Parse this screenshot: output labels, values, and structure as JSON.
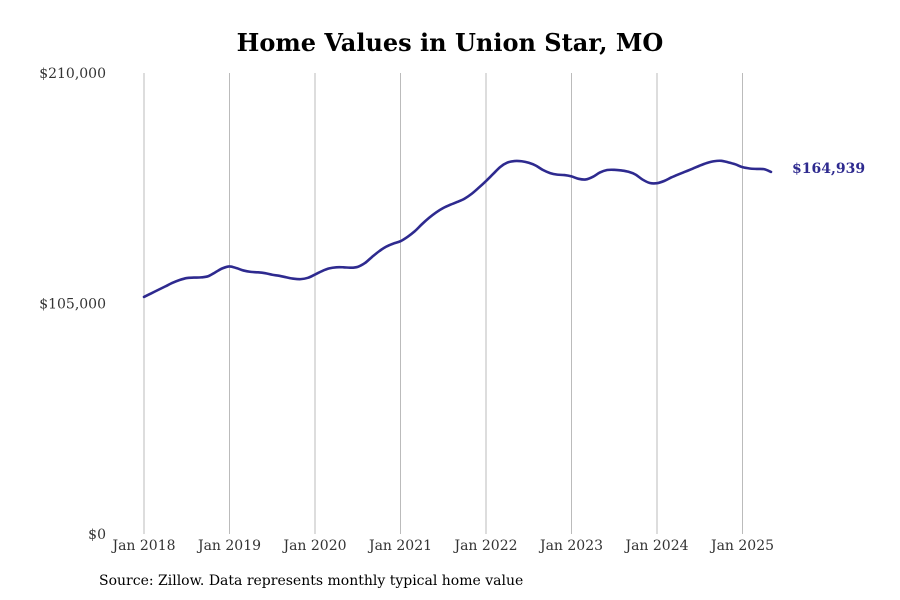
{
  "chart_data": {
    "type": "line",
    "title": "Home Values in Union Star, MO",
    "xlabel": "",
    "ylabel": "",
    "source": "Source: Zillow. Data represents monthly typical home value",
    "y_ticks": [
      {
        "value": 0,
        "label": "$0"
      },
      {
        "value": 105000,
        "label": "$105,000"
      },
      {
        "value": 210000,
        "label": "$210,000"
      }
    ],
    "x_ticks": [
      {
        "value": "2018-01",
        "label": "Jan 2018"
      },
      {
        "value": "2019-01",
        "label": "Jan 2019"
      },
      {
        "value": "2020-01",
        "label": "Jan 2020"
      },
      {
        "value": "2021-01",
        "label": "Jan 2021"
      },
      {
        "value": "2022-01",
        "label": "Jan 2022"
      },
      {
        "value": "2023-01",
        "label": "Jan 2023"
      },
      {
        "value": "2024-01",
        "label": "Jan 2024"
      },
      {
        "value": "2025-01",
        "label": "Jan 2025"
      }
    ],
    "ylim": [
      0,
      210000
    ],
    "xlim": [
      "2018-01",
      "2025-05"
    ],
    "grid": {
      "vertical": true,
      "horizontal": false
    },
    "line_color": "#2e2a8f",
    "grid_color": "#bbbbbb",
    "end_label": "$164,939",
    "series": [
      {
        "x": [
          "2018-01",
          "2018-02",
          "2018-03",
          "2018-04",
          "2018-05",
          "2018-06",
          "2018-07",
          "2018-08",
          "2018-09",
          "2018-10",
          "2018-11",
          "2018-12",
          "2019-01",
          "2019-02",
          "2019-03",
          "2019-04",
          "2019-05",
          "2019-06",
          "2019-07",
          "2019-08",
          "2019-09",
          "2019-10",
          "2019-11",
          "2019-12",
          "2020-01",
          "2020-02",
          "2020-03",
          "2020-04",
          "2020-05",
          "2020-06",
          "2020-07",
          "2020-08",
          "2020-09",
          "2020-10",
          "2020-11",
          "2020-12",
          "2021-01",
          "2021-02",
          "2021-03",
          "2021-04",
          "2021-05",
          "2021-06",
          "2021-07",
          "2021-08",
          "2021-09",
          "2021-10",
          "2021-11",
          "2021-12",
          "2022-01",
          "2022-02",
          "2022-03",
          "2022-04",
          "2022-05",
          "2022-06",
          "2022-07",
          "2022-08",
          "2022-09",
          "2022-10",
          "2022-11",
          "2022-12",
          "2023-01",
          "2023-02",
          "2023-03",
          "2023-04",
          "2023-05",
          "2023-06",
          "2023-07",
          "2023-08",
          "2023-09",
          "2023-10",
          "2023-11",
          "2023-12",
          "2024-01",
          "2024-02",
          "2024-03",
          "2024-04",
          "2024-05",
          "2024-06",
          "2024-07",
          "2024-08",
          "2024-09",
          "2024-10",
          "2024-11",
          "2024-12",
          "2025-01",
          "2025-02",
          "2025-03",
          "2025-04",
          "2025-05"
        ],
        "y": [
          108000,
          109600,
          111200,
          112800,
          114400,
          115700,
          116600,
          116800,
          116900,
          117400,
          119200,
          121000,
          121900,
          121100,
          120000,
          119400,
          119200,
          118800,
          118100,
          117600,
          116900,
          116300,
          116100,
          116700,
          118200,
          119800,
          121000,
          121500,
          121500,
          121300,
          121700,
          123400,
          126200,
          128800,
          130900,
          132300,
          133400,
          135400,
          137900,
          141100,
          144000,
          146500,
          148500,
          150000,
          151300,
          152800,
          155000,
          157800,
          160800,
          164000,
          167200,
          169200,
          169900,
          169800,
          169100,
          167800,
          165800,
          164400,
          163700,
          163500,
          162900,
          161800,
          161500,
          162700,
          164700,
          165800,
          165900,
          165600,
          165000,
          163700,
          161400,
          159900,
          159800,
          160800,
          162400,
          163800,
          165100,
          166400,
          167800,
          169000,
          169800,
          170000,
          169300,
          168400,
          167100,
          166500,
          166300,
          166200,
          164939
        ]
      }
    ]
  }
}
